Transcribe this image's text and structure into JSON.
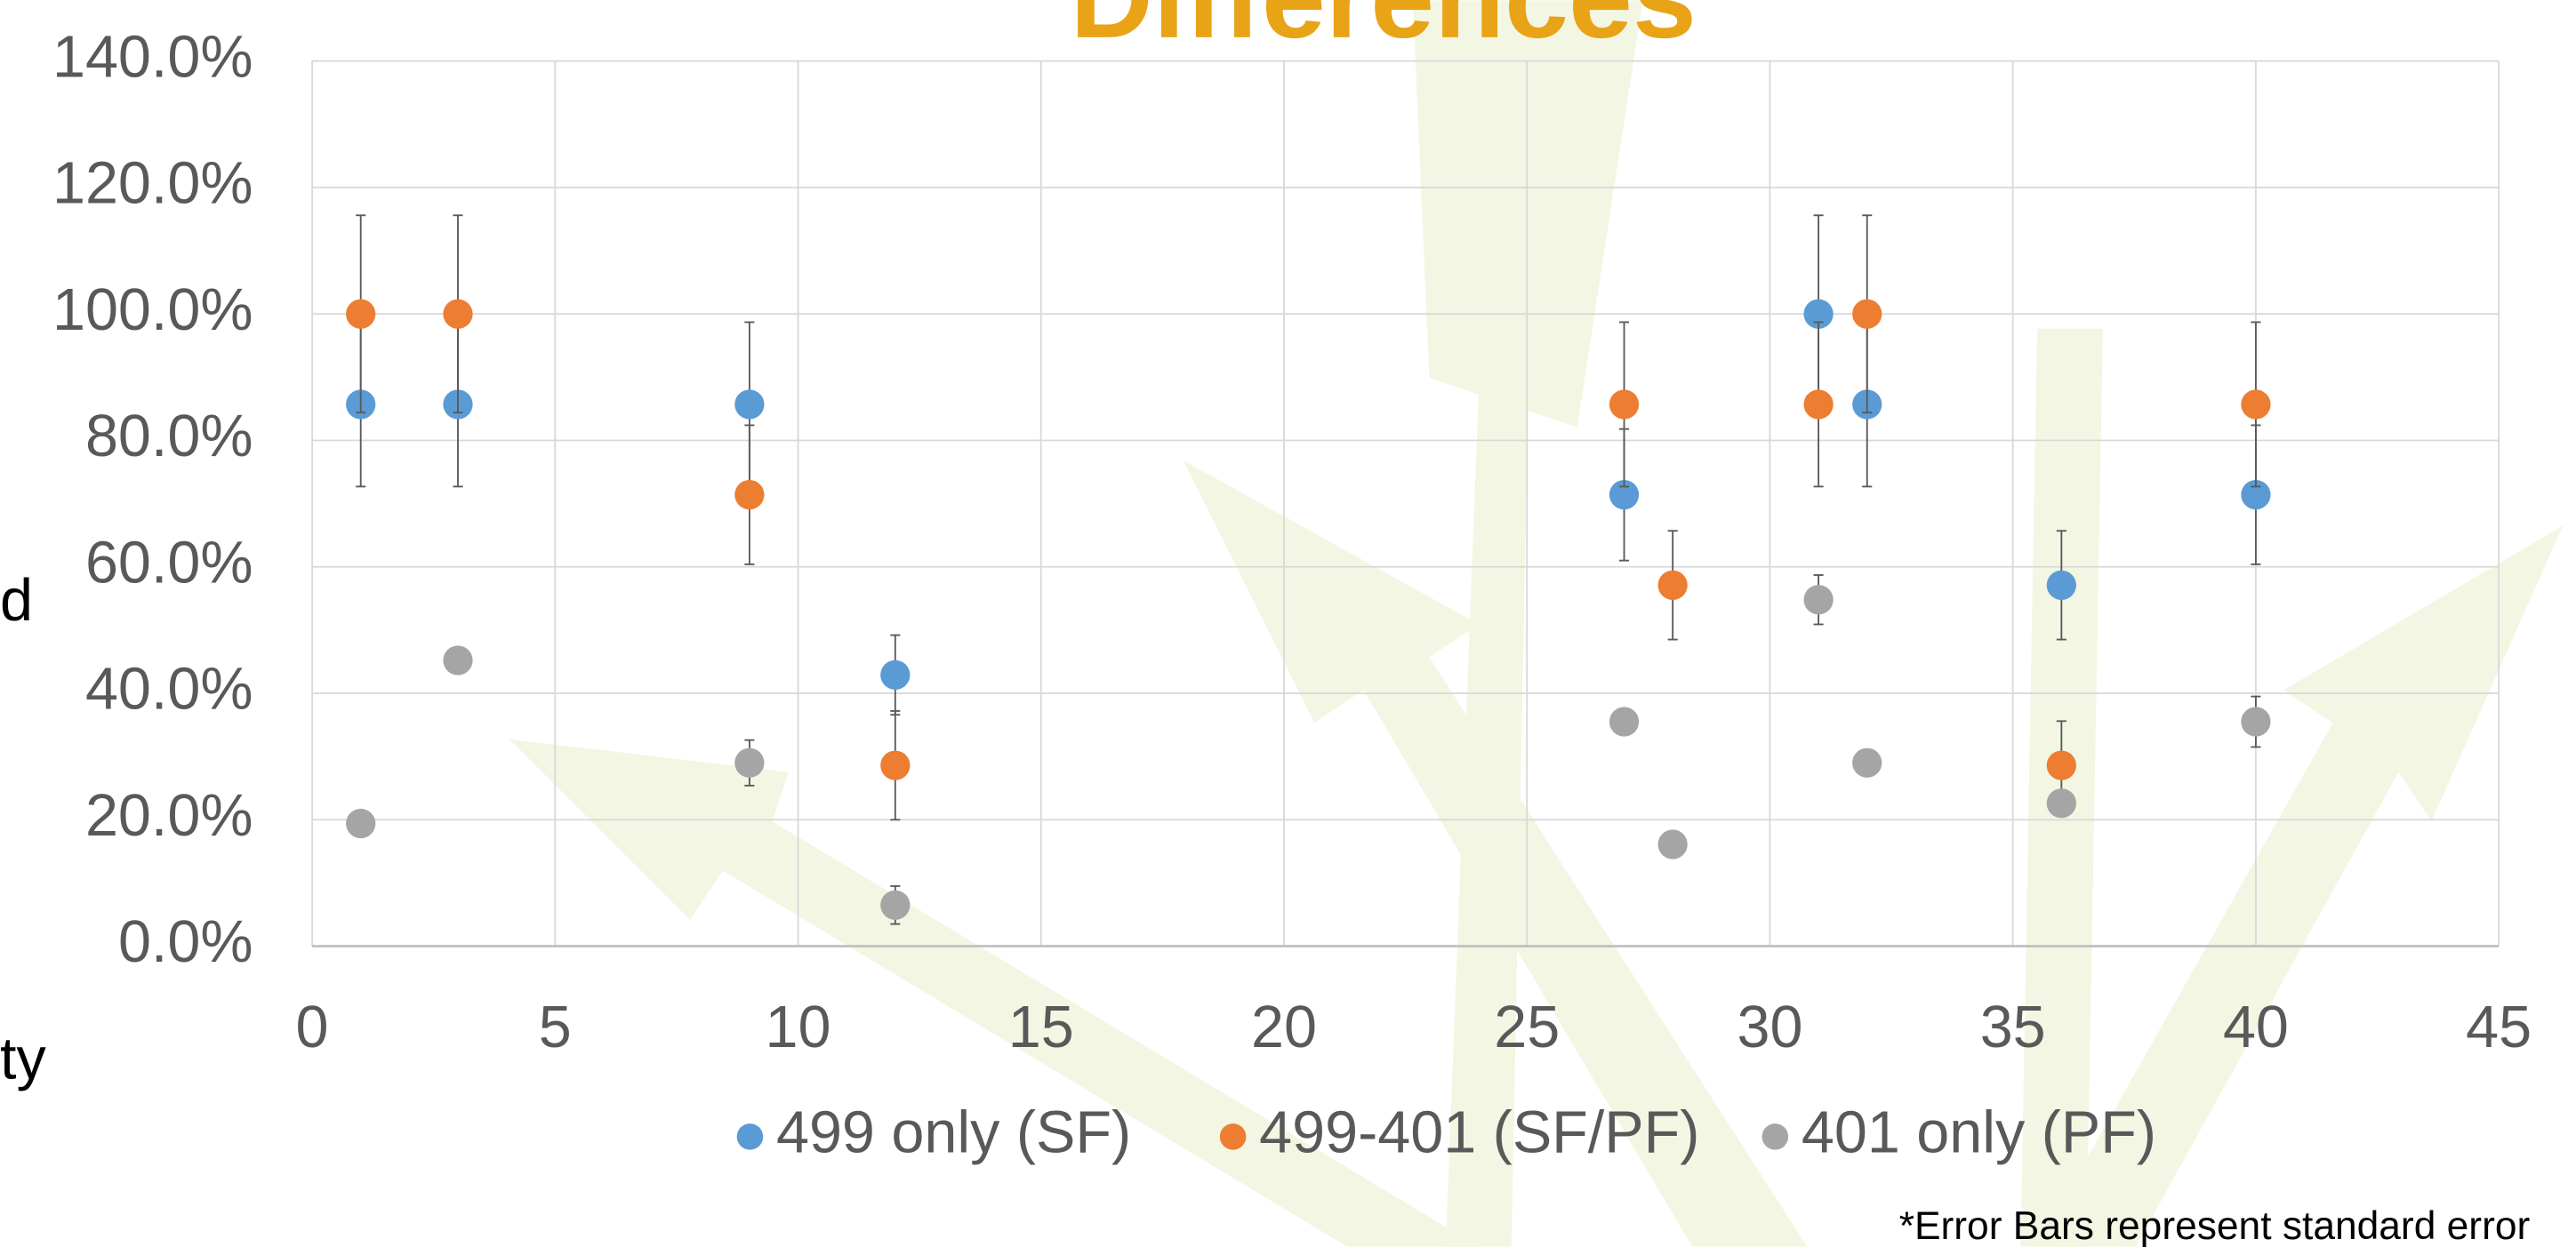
{
  "chart_data": {
    "type": "scatter",
    "title": "Differences",
    "y_label_fragments": [
      "d",
      "ty"
    ],
    "footnote": "*Error Bars represent standard error",
    "xlim": [
      0,
      45
    ],
    "xticks": [
      0,
      5,
      10,
      15,
      20,
      25,
      30,
      35,
      40,
      45
    ],
    "ylim": [
      0,
      140
    ],
    "yticks": [
      {
        "value": 0,
        "label": "0.0%"
      },
      {
        "value": 20,
        "label": "20.0%"
      },
      {
        "value": 40,
        "label": "40.0%"
      },
      {
        "value": 60,
        "label": "60.0%"
      },
      {
        "value": 80,
        "label": "80.0%"
      },
      {
        "value": 100,
        "label": "100.0%"
      },
      {
        "value": 120,
        "label": "120.0%"
      },
      {
        "value": 140,
        "label": "140.0%"
      }
    ],
    "grid": true,
    "legend": "bottom",
    "series": [
      {
        "name": "499 only (SF)",
        "color": "#5b9bd5",
        "x": [
          1,
          3,
          9,
          12,
          27,
          31,
          32,
          36,
          40
        ],
        "values": [
          85.7,
          85.7,
          85.7,
          42.9,
          71.4,
          100,
          85.7,
          57.1,
          71.4
        ],
        "errors": [
          13,
          13,
          13,
          6.3,
          10.4,
          15.6,
          13,
          8.6,
          11
        ]
      },
      {
        "name": "499-401 (SF/PF)",
        "color": "#ed7d31",
        "x": [
          1,
          3,
          9,
          12,
          27,
          28,
          31,
          32,
          36,
          40
        ],
        "values": [
          100,
          100,
          71.4,
          28.6,
          85.7,
          57.1,
          85.7,
          100,
          28.6,
          85.7
        ],
        "errors": [
          15.6,
          15.6,
          11,
          8.6,
          13,
          8.6,
          13,
          15.6,
          7,
          13
        ]
      },
      {
        "name": "401 only (PF)",
        "color": "#a5a5a5",
        "x": [
          1,
          3,
          9,
          12,
          27,
          28,
          31,
          32,
          36,
          40
        ],
        "values": [
          19.4,
          45.2,
          29,
          6.5,
          35.5,
          16.1,
          54.8,
          29,
          22.6,
          35.5
        ],
        "errors": [
          0.5,
          1.5,
          3.6,
          3,
          1,
          0.5,
          3.9,
          0.5,
          0.5,
          4
        ]
      }
    ]
  }
}
